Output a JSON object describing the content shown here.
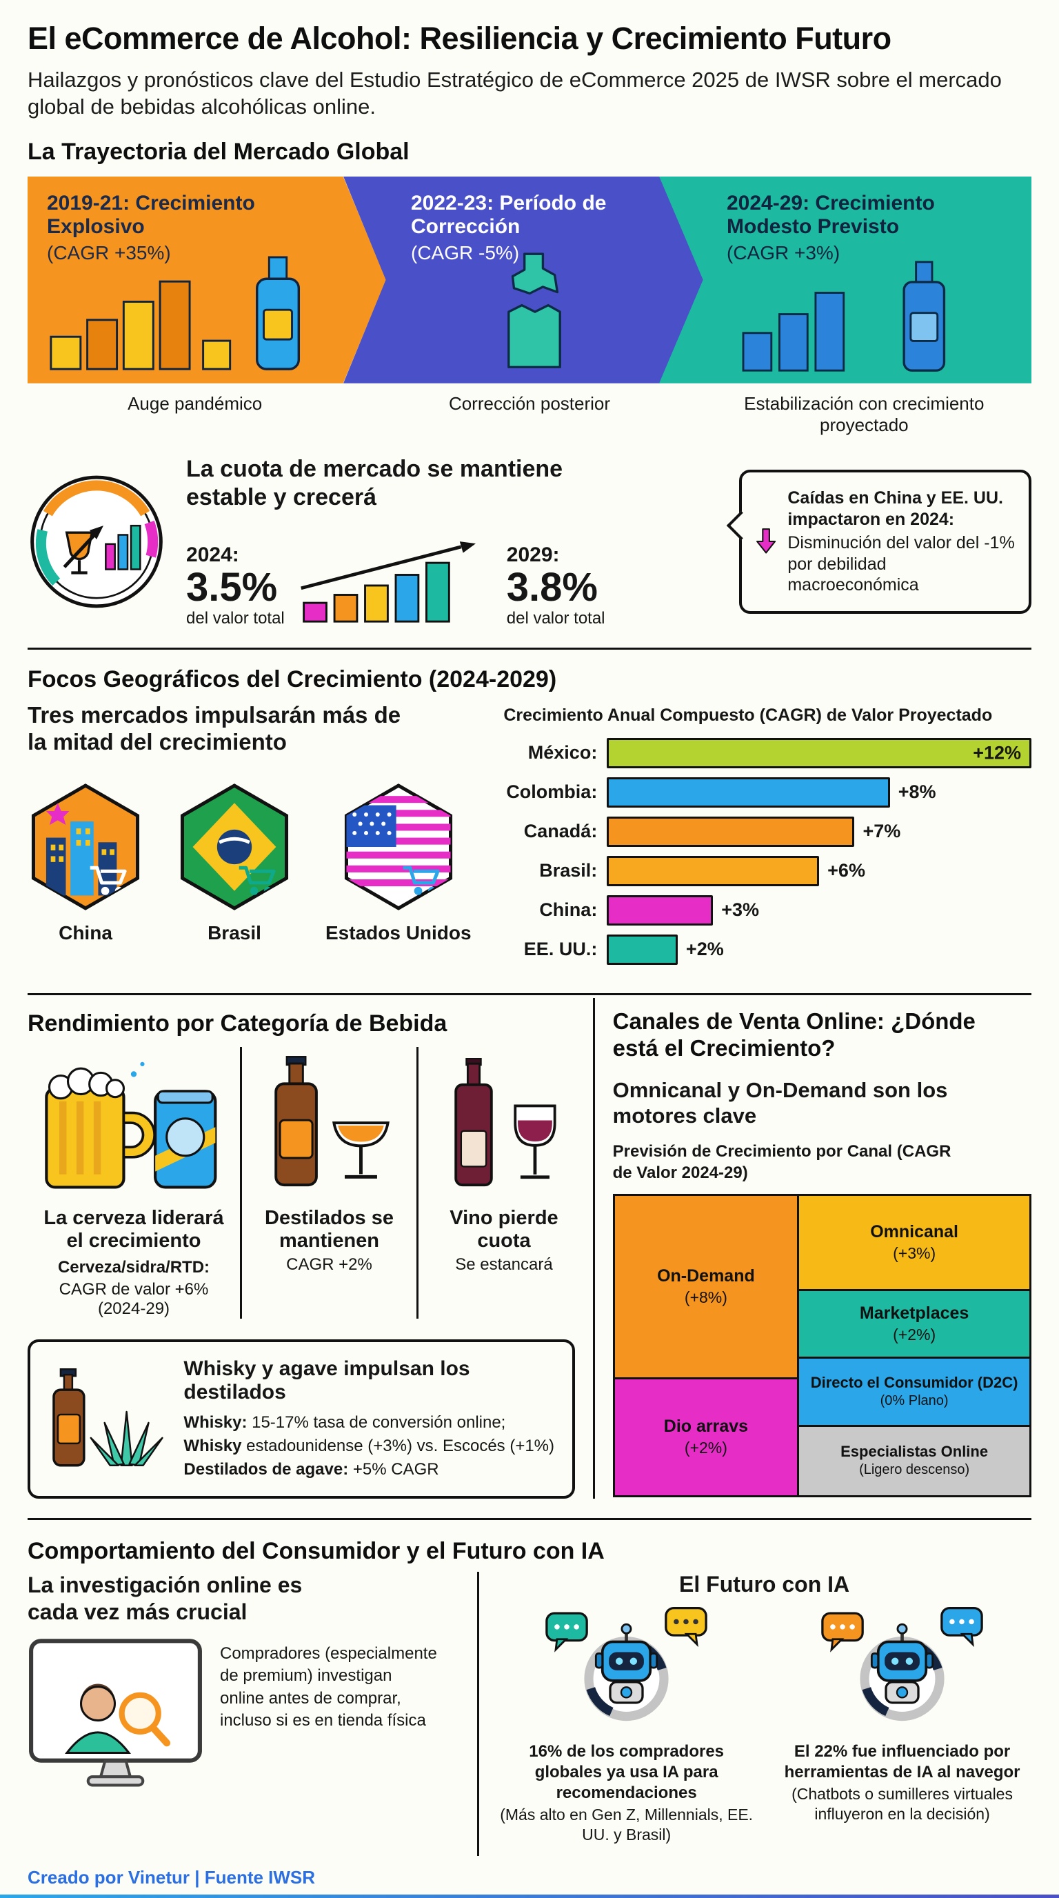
{
  "page": {
    "title": "El eCommerce de Alcohol: Resiliencia y Crecimiento Futuro",
    "subtitle": "Hailazgos y pronósticos clave del Estudio Estratégico de eCommerce 2025 de IWSR sobre el mercado global de bebidas alcohólicas online.",
    "footer": "Creado por Vinetur | Fuente IWSR"
  },
  "colors": {
    "orange": "#f5941f",
    "yellow": "#f7c51e",
    "indigo": "#4a50c8",
    "teal": "#1db9a0",
    "magenta": "#e62ec7",
    "sky": "#2ba6e9",
    "lime": "#b5d330",
    "gray": "#c9c9c9",
    "footer_blue": "#2b6fe0"
  },
  "trajectory": {
    "heading": "La Trayectoria del Mercado Global",
    "phases": [
      {
        "title": "2019-21: Crecimiento Explosivo",
        "cagr": "(CAGR +35%)",
        "caption": "Auge pandémico",
        "color": "#f5941f"
      },
      {
        "title": "2022-23: Período de Corrección",
        "cagr": "(CAGR -5%)",
        "caption": "Corrección posterior",
        "color": "#4a50c8"
      },
      {
        "title": "2024-29: Crecimiento Modesto Previsto",
        "cagr": "(CAGR +3%)",
        "caption": "Estabilización con crecimiento proyectado",
        "color": "#1db9a0"
      }
    ]
  },
  "market_share": {
    "heading": "La cuota de mercado se mantiene estable y crecerá",
    "from_year": "2024:",
    "from_value": "3.5%",
    "from_label": "del valor total",
    "to_year": "2029:",
    "to_value": "3.8%",
    "to_label": "del valor total",
    "callout_title": "Caídas en China y EE. UU. impactaron en 2024:",
    "callout_body": "Disminución del valor del -1% por debilidad macroeconómica"
  },
  "geography": {
    "heading": "Focos Geográficos del Crecimiento (2024-2029)",
    "intro": "Tres mercados impulsarán más de la mitad del crecimiento",
    "markets": [
      "China",
      "Brasil",
      "Estados Unidos"
    ]
  },
  "categories_section": {
    "heading": "Rendimiento por Categoría de Bebida",
    "items": [
      {
        "title": "La cerveza liderará el crecimiento",
        "sub_bold": "Cerveza/sidra/RTD:",
        "sub": "CAGR de valor +6% (2024-29)"
      },
      {
        "title": "Destilados se mantienen",
        "sub": "CAGR +2%"
      },
      {
        "title": "Vino pierde cuota",
        "sub": "Se estancará"
      }
    ],
    "whisky_box": {
      "title": "Whisky y agave impulsan los destilados",
      "lines": [
        {
          "bold": "Whisky:",
          "text": " 15-17% tasa de conversión online;"
        },
        {
          "bold": "Whisky",
          "text": " estadounidense (+3%) vs. Escocés (+1%)"
        },
        {
          "bold": "Destilados de agave:",
          "text": " +5% CAGR"
        }
      ]
    }
  },
  "channels": {
    "heading": "Canales de Venta Online: ¿Dónde está el Crecimiento?",
    "subheading": "Omnicanal y On-Demand son los motores clave",
    "chart_title": "Previsión de Crecimiento por Canal (CAGR de Valor 2024-29)"
  },
  "consumer": {
    "heading": "Comportamiento del Consumidor y el Futuro con IA",
    "left_title": "La investigación online es cada vez más crucial",
    "left_body": "Compradores (especialmente de premium) investigan online antes de comprar, incluso si es en tienda física",
    "right_title": "El Futuro con IA",
    "stat1_bold": "16% de los compradores globales ya usa IA para recomendaciones",
    "stat1_sub": "(Más alto en Gen Z, Millennials, EE. UU. y Brasil)",
    "stat2_bold": "El 22% fue influenciado por herramientas de IA al navegor",
    "stat2_sub": "(Chatbots o sumilleres virtuales influyeron en la decisión)"
  },
  "chart_data": [
    {
      "id": "cagr_by_market",
      "type": "bar",
      "orientation": "horizontal",
      "title": "Crecimiento Anual Compuesto (CAGR) de Valor Proyectado",
      "categories": [
        "México:",
        "Colombia:",
        "Canadá:",
        "Brasil:",
        "China:",
        "EE. UU.:"
      ],
      "values": [
        12,
        8,
        7,
        6,
        3,
        2
      ],
      "labels": [
        "+12%",
        "+8%",
        "+7%",
        "+6%",
        "+3%",
        "+2%"
      ],
      "colors": [
        "#b5d330",
        "#2ba6e9",
        "#f5941f",
        "#f8a81e",
        "#e62ec7",
        "#1db9a0"
      ],
      "xlim": [
        0,
        12
      ],
      "grid": false,
      "legend": "none"
    },
    {
      "id": "channel_treemap",
      "type": "treemap",
      "title": "Previsión de Crecimiento por Canal (CAGR de Valor 2024-29)",
      "nodes": [
        {
          "label": "On-Demand",
          "value": "(+8%)",
          "color": "#f5941f"
        },
        {
          "label": "Dio arravs",
          "value": "(+2%)",
          "color": "#e62ec7"
        },
        {
          "label": "Omnicanal",
          "value": "(+3%)",
          "color": "#f7b916"
        },
        {
          "label": "Marketplaces",
          "value": "(+2%)",
          "color": "#1db9a0"
        },
        {
          "label": "Directo el Consumidor (D2C)",
          "value": "(0% Plano)",
          "color": "#2ba6e9"
        },
        {
          "label": "Especialistas Online",
          "value": "(Ligero descenso)",
          "color": "#c9c9c9"
        }
      ]
    }
  ]
}
